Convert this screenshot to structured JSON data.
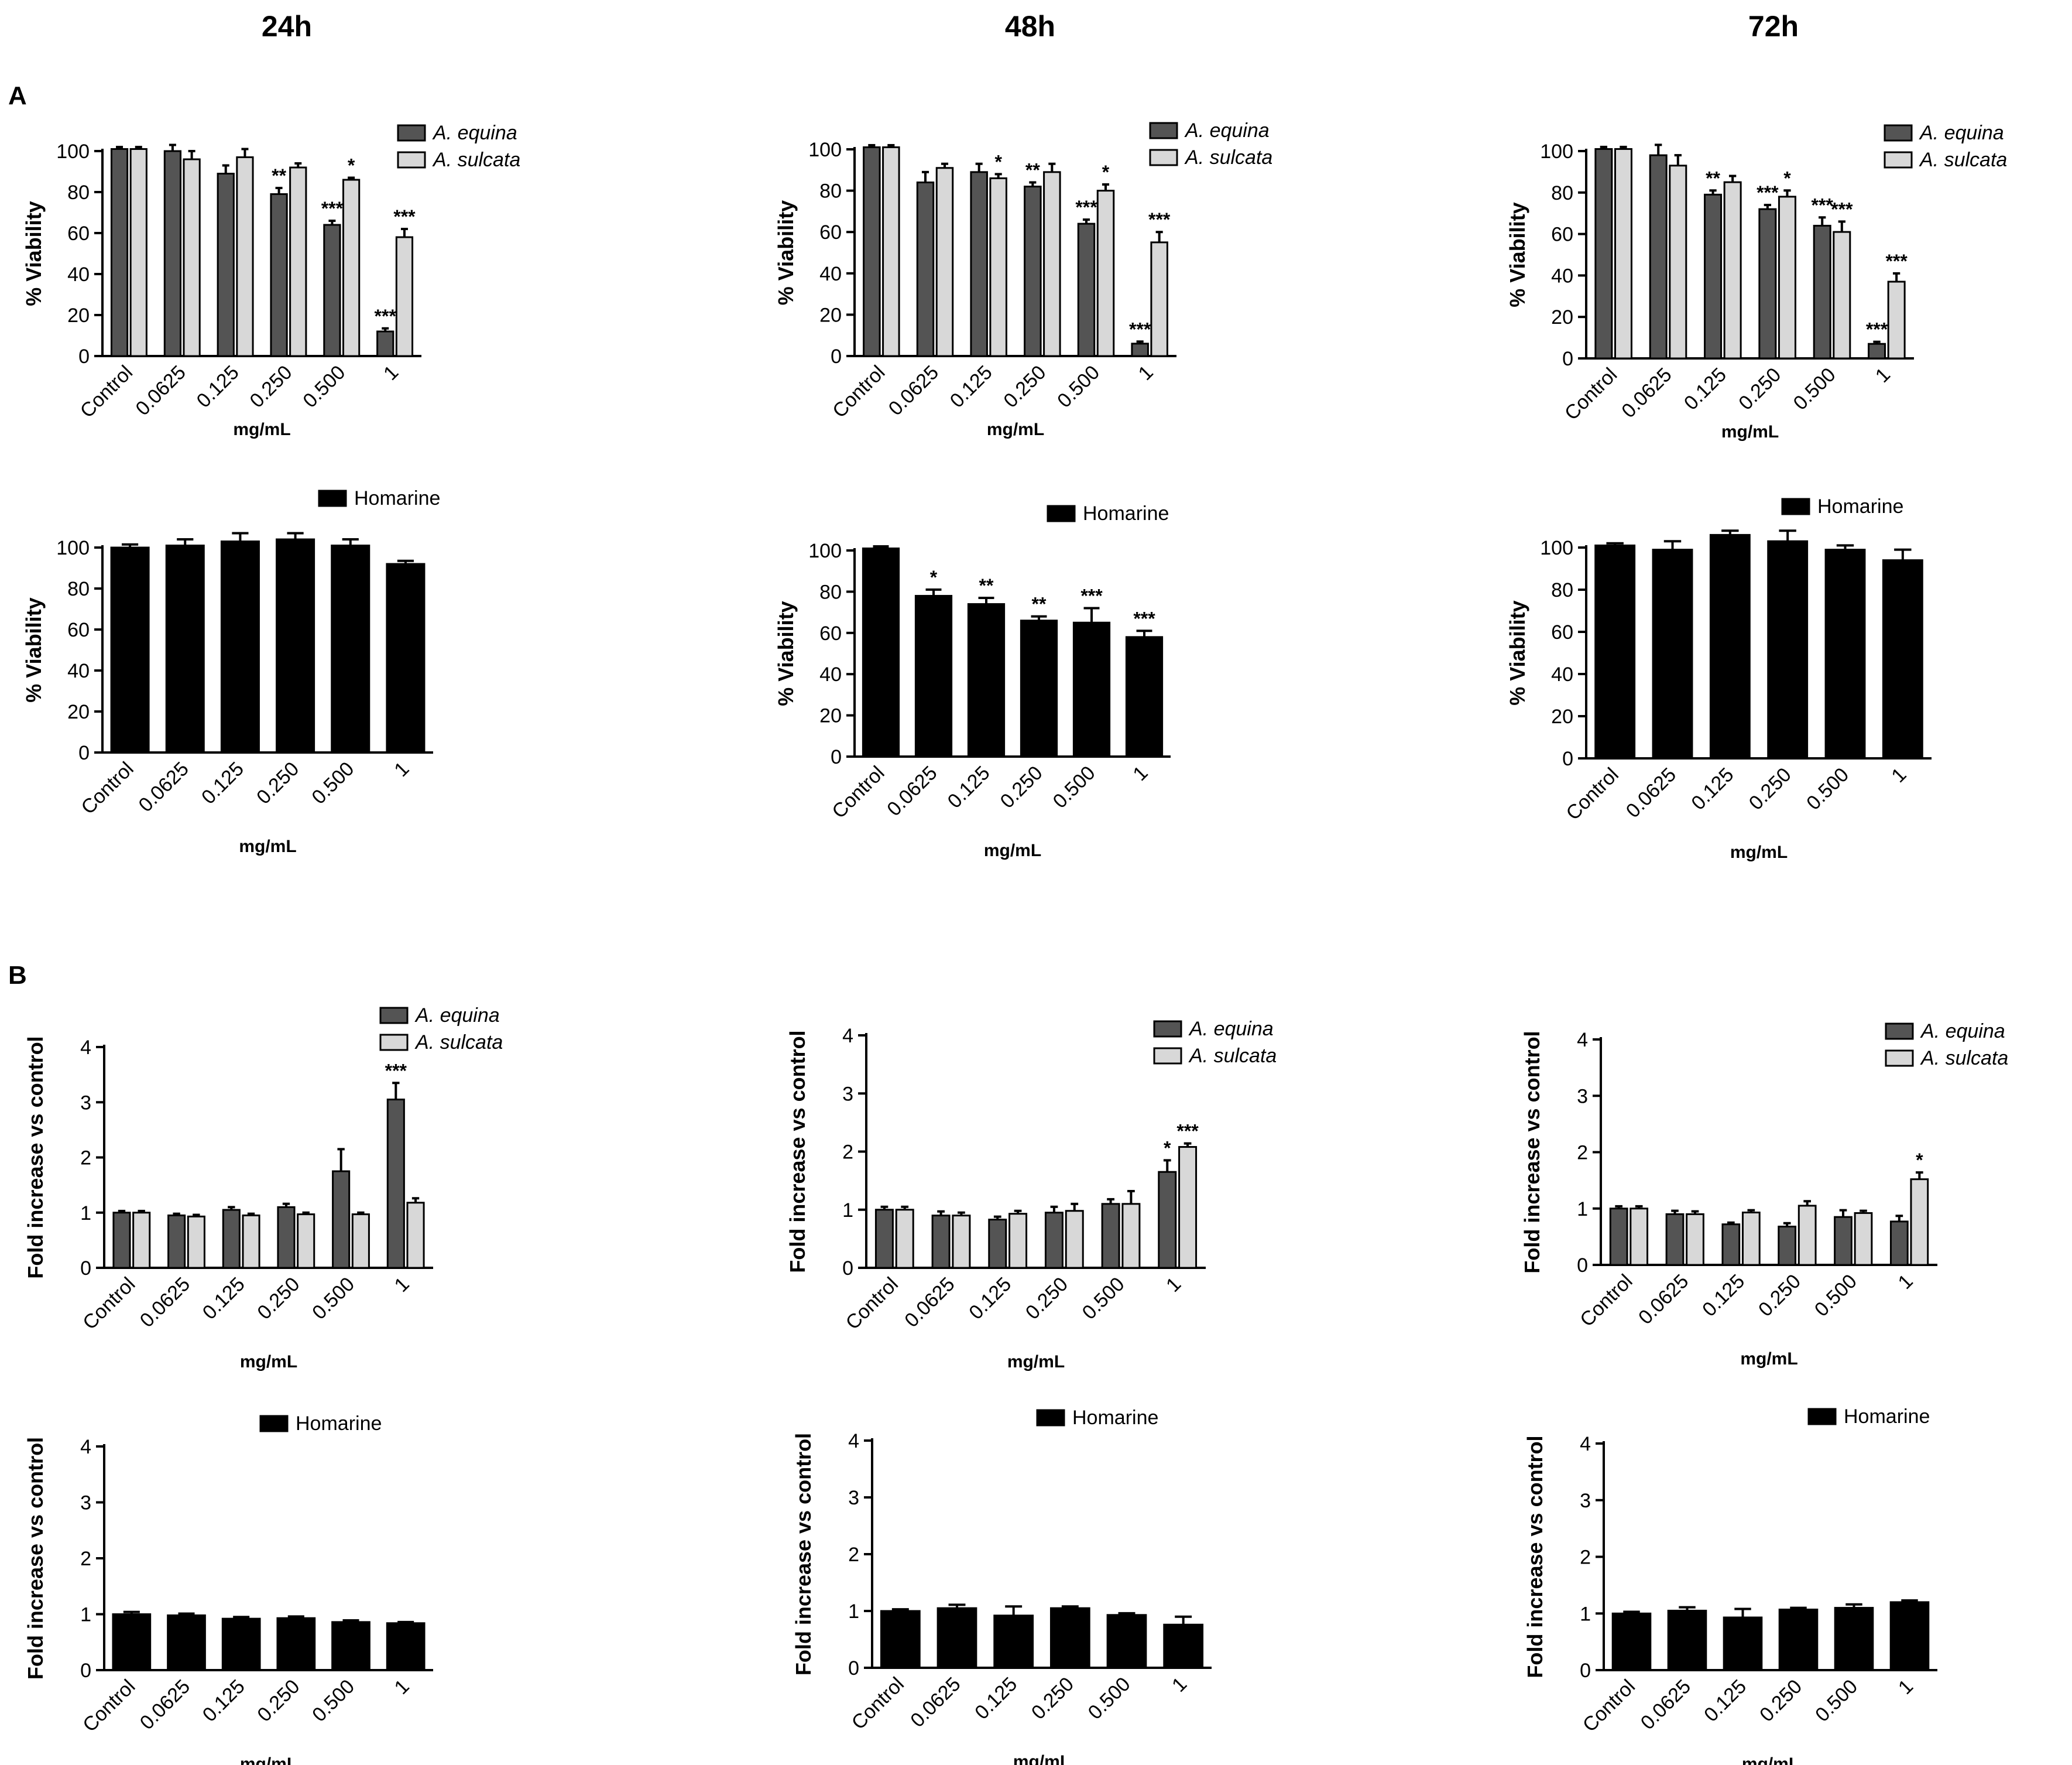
{
  "figure": {
    "time_labels": [
      "24h",
      "48h",
      "72h"
    ],
    "panel_labels": [
      "A",
      "B"
    ]
  },
  "colors": {
    "equina": "#545454",
    "sulcata": "#d8d8d8",
    "homarine": "#000000",
    "axis": "#000000"
  },
  "chart_data": [
    {
      "id": "A-24h-extracts",
      "panel": "A",
      "time": "24h",
      "type": "bar",
      "categories": [
        "Control",
        "0.0625",
        "0.125",
        "0.250",
        "0.500",
        "1"
      ],
      "xlabel": "mg/mL",
      "ylabel": "% Viability",
      "ylim": [
        0,
        100
      ],
      "yticks": [
        0,
        20,
        40,
        60,
        80,
        100
      ],
      "legend": "top-right",
      "series": [
        {
          "name": "A. equina",
          "color": "equina",
          "values": [
            101,
            100,
            89,
            79,
            64,
            12
          ],
          "errors": [
            1,
            3,
            4,
            3,
            2,
            1.5
          ],
          "sig": [
            "",
            "",
            "",
            "**",
            "***",
            "***"
          ]
        },
        {
          "name": "A. sulcata",
          "color": "sulcata",
          "values": [
            101,
            96,
            97,
            92,
            86,
            58
          ],
          "errors": [
            1,
            4,
            4,
            2,
            1,
            4
          ],
          "sig": [
            "",
            "",
            "",
            "",
            "*",
            "***"
          ]
        }
      ]
    },
    {
      "id": "A-48h-extracts",
      "panel": "A",
      "time": "48h",
      "type": "bar",
      "categories": [
        "Control",
        "0.0625",
        "0.125",
        "0.250",
        "0.500",
        "1"
      ],
      "xlabel": "mg/mL",
      "ylabel": "% Viability",
      "ylim": [
        0,
        100
      ],
      "yticks": [
        0,
        20,
        40,
        60,
        80,
        100
      ],
      "legend": "top-right",
      "series": [
        {
          "name": "A. equina",
          "color": "equina",
          "values": [
            101,
            84,
            89,
            82,
            64,
            6
          ],
          "errors": [
            1,
            5,
            4,
            2,
            2,
            1
          ],
          "sig": [
            "",
            "",
            "",
            "**",
            "***",
            "***"
          ]
        },
        {
          "name": "A. sulcata",
          "color": "sulcata",
          "values": [
            101,
            91,
            86,
            89,
            80,
            55
          ],
          "errors": [
            1,
            2,
            2,
            4,
            3,
            5
          ],
          "sig": [
            "",
            "",
            "*",
            "",
            "*",
            "***"
          ]
        }
      ]
    },
    {
      "id": "A-72h-extracts",
      "panel": "A",
      "time": "72h",
      "type": "bar",
      "categories": [
        "Control",
        "0.0625",
        "0.125",
        "0.250",
        "0.500",
        "1"
      ],
      "xlabel": "mg/mL",
      "ylabel": "% Viability",
      "ylim": [
        0,
        100
      ],
      "yticks": [
        0,
        20,
        40,
        60,
        80,
        100
      ],
      "legend": "top-right",
      "series": [
        {
          "name": "A. equina",
          "color": "equina",
          "values": [
            101,
            98,
            79,
            72,
            64,
            7
          ],
          "errors": [
            1,
            5,
            2,
            2,
            4,
            1
          ],
          "sig": [
            "",
            "",
            "**",
            "***",
            "***",
            "***"
          ]
        },
        {
          "name": "A. sulcata",
          "color": "sulcata",
          "values": [
            101,
            93,
            85,
            78,
            61,
            37
          ],
          "errors": [
            1,
            5,
            3,
            3,
            5,
            4
          ],
          "sig": [
            "",
            "",
            "",
            "*",
            "***",
            "***"
          ]
        }
      ]
    },
    {
      "id": "A-24h-homarine",
      "panel": "A",
      "time": "24h",
      "type": "bar",
      "categories": [
        "Control",
        "0.0625",
        "0.125",
        "0.250",
        "0.500",
        "1"
      ],
      "xlabel": "mg/mL",
      "ylabel": "% Viability",
      "ylim": [
        0,
        100
      ],
      "yticks": [
        0,
        20,
        40,
        60,
        80,
        100
      ],
      "legend": "top-right",
      "series": [
        {
          "name": "Homarine",
          "color": "homarine",
          "values": [
            100,
            101,
            103,
            104,
            101,
            92
          ],
          "errors": [
            1.5,
            3,
            4,
            3,
            3,
            1.5
          ],
          "sig": [
            "",
            "",
            "",
            "",
            "",
            ""
          ]
        }
      ]
    },
    {
      "id": "A-48h-homarine",
      "panel": "A",
      "time": "48h",
      "type": "bar",
      "categories": [
        "Control",
        "0.0625",
        "0.125",
        "0.250",
        "0.500",
        "1"
      ],
      "xlabel": "mg/mL",
      "ylabel": "% Viability",
      "ylim": [
        0,
        100
      ],
      "yticks": [
        0,
        20,
        40,
        60,
        80,
        100
      ],
      "legend": "top-right",
      "series": [
        {
          "name": "Homarine",
          "color": "homarine",
          "values": [
            101,
            78,
            74,
            66,
            65,
            58
          ],
          "errors": [
            1,
            3,
            3,
            2,
            7,
            3
          ],
          "sig": [
            "",
            "*",
            "**",
            "**",
            "***",
            "***"
          ]
        }
      ]
    },
    {
      "id": "A-72h-homarine",
      "panel": "A",
      "time": "72h",
      "type": "bar",
      "categories": [
        "Control",
        "0.0625",
        "0.125",
        "0.250",
        "0.500",
        "1"
      ],
      "xlabel": "mg/mL",
      "ylabel": "% Viability",
      "ylim": [
        0,
        100
      ],
      "yticks": [
        0,
        20,
        40,
        60,
        80,
        100
      ],
      "legend": "top-right",
      "series": [
        {
          "name": "Homarine",
          "color": "homarine",
          "values": [
            101,
            99,
            106,
            103,
            99,
            94
          ],
          "errors": [
            1,
            4,
            2,
            5,
            2,
            5
          ],
          "sig": [
            "",
            "",
            "",
            "",
            "",
            ""
          ]
        }
      ]
    },
    {
      "id": "B-24h-extracts",
      "panel": "B",
      "time": "24h",
      "type": "bar",
      "categories": [
        "Control",
        "0.0625",
        "0.125",
        "0.250",
        "0.500",
        "1"
      ],
      "xlabel": "mg/mL",
      "ylabel": "Fold increase vs control",
      "ylim": [
        0,
        4
      ],
      "yticks": [
        0,
        1,
        2,
        3,
        4
      ],
      "legend": "top-right",
      "series": [
        {
          "name": "A. equina",
          "color": "equina",
          "values": [
            1.0,
            0.95,
            1.05,
            1.1,
            1.75,
            3.05
          ],
          "errors": [
            0.03,
            0.03,
            0.05,
            0.06,
            0.4,
            0.3
          ],
          "sig": [
            "",
            "",
            "",
            "",
            "",
            "***"
          ]
        },
        {
          "name": "A. sulcata",
          "color": "sulcata",
          "values": [
            1.0,
            0.93,
            0.95,
            0.97,
            0.97,
            1.18
          ],
          "errors": [
            0.03,
            0.03,
            0.03,
            0.03,
            0.03,
            0.08
          ],
          "sig": [
            "",
            "",
            "",
            "",
            "",
            ""
          ]
        }
      ]
    },
    {
      "id": "B-48h-extracts",
      "panel": "B",
      "time": "48h",
      "type": "bar",
      "categories": [
        "Control",
        "0.0625",
        "0.125",
        "0.250",
        "0.500",
        "1"
      ],
      "xlabel": "mg/mL",
      "ylabel": "Fold increase vs control",
      "ylim": [
        0,
        4
      ],
      "yticks": [
        0,
        1,
        2,
        3,
        4
      ],
      "legend": "top-right",
      "series": [
        {
          "name": "A. equina",
          "color": "equina",
          "values": [
            1.0,
            0.9,
            0.83,
            0.95,
            1.1,
            1.65
          ],
          "errors": [
            0.05,
            0.07,
            0.05,
            0.1,
            0.08,
            0.2
          ],
          "sig": [
            "",
            "",
            "",
            "",
            "",
            "*"
          ]
        },
        {
          "name": "A. sulcata",
          "color": "sulcata",
          "values": [
            1.0,
            0.9,
            0.93,
            0.98,
            1.1,
            2.08
          ],
          "errors": [
            0.05,
            0.05,
            0.05,
            0.12,
            0.22,
            0.06
          ],
          "sig": [
            "",
            "",
            "",
            "",
            "",
            "***"
          ]
        }
      ]
    },
    {
      "id": "B-72h-extracts",
      "panel": "B",
      "time": "72h",
      "type": "bar",
      "categories": [
        "Control",
        "0.0625",
        "0.125",
        "0.250",
        "0.500",
        "1"
      ],
      "xlabel": "mg/mL",
      "ylabel": "Fold increase vs control",
      "ylim": [
        0,
        4
      ],
      "yticks": [
        0,
        1,
        2,
        3,
        4
      ],
      "legend": "top-right",
      "series": [
        {
          "name": "A. equina",
          "color": "equina",
          "values": [
            1.0,
            0.9,
            0.72,
            0.68,
            0.85,
            0.77
          ],
          "errors": [
            0.04,
            0.06,
            0.03,
            0.06,
            0.12,
            0.1
          ],
          "sig": [
            "",
            "",
            "",
            "",
            "",
            ""
          ]
        },
        {
          "name": "A. sulcata",
          "color": "sulcata",
          "values": [
            1.0,
            0.9,
            0.93,
            1.05,
            0.92,
            1.52
          ],
          "errors": [
            0.04,
            0.05,
            0.04,
            0.08,
            0.04,
            0.12
          ],
          "sig": [
            "",
            "",
            "",
            "",
            "",
            "*"
          ]
        }
      ]
    },
    {
      "id": "B-24h-homarine",
      "panel": "B",
      "time": "24h",
      "type": "bar",
      "categories": [
        "Control",
        "0.0625",
        "0.125",
        "0.250",
        "0.500",
        "1"
      ],
      "xlabel": "mg/mL",
      "ylabel": "Fold increase vs control",
      "ylim": [
        0,
        4
      ],
      "yticks": [
        0,
        1,
        2,
        3,
        4
      ],
      "legend": "top-right",
      "series": [
        {
          "name": "Homarine",
          "color": "homarine",
          "values": [
            1.0,
            0.98,
            0.92,
            0.93,
            0.86,
            0.84
          ],
          "errors": [
            0.04,
            0.03,
            0.03,
            0.03,
            0.03,
            0.02
          ],
          "sig": [
            "",
            "",
            "",
            "",
            "",
            ""
          ]
        }
      ]
    },
    {
      "id": "B-48h-homarine",
      "panel": "B",
      "time": "48h",
      "type": "bar",
      "categories": [
        "Control",
        "0.0625",
        "0.125",
        "0.250",
        "0.500",
        "1"
      ],
      "xlabel": "mg/mL",
      "ylabel": "Fold increase vs control",
      "ylim": [
        0,
        4
      ],
      "yticks": [
        0,
        1,
        2,
        3,
        4
      ],
      "legend": "top-right",
      "series": [
        {
          "name": "Homarine",
          "color": "homarine",
          "values": [
            1.0,
            1.05,
            0.92,
            1.05,
            0.93,
            0.76
          ],
          "errors": [
            0.03,
            0.06,
            0.16,
            0.03,
            0.03,
            0.14
          ],
          "sig": [
            "",
            "",
            "",
            "",
            "",
            ""
          ]
        }
      ]
    },
    {
      "id": "B-72h-homarine",
      "panel": "B",
      "time": "72h",
      "type": "bar",
      "categories": [
        "Control",
        "0.0625",
        "0.125",
        "0.250",
        "0.500",
        "1"
      ],
      "xlabel": "mg/mL",
      "ylabel": "Fold increase vs control",
      "ylim": [
        0,
        4
      ],
      "yticks": [
        0,
        1,
        2,
        3,
        4
      ],
      "legend": "top-right",
      "series": [
        {
          "name": "Homarine",
          "color": "homarine",
          "values": [
            1.0,
            1.05,
            0.93,
            1.07,
            1.1,
            1.2
          ],
          "errors": [
            0.03,
            0.06,
            0.15,
            0.03,
            0.06,
            0.03
          ],
          "sig": [
            "",
            "",
            "",
            "",
            "",
            ""
          ]
        }
      ]
    }
  ]
}
